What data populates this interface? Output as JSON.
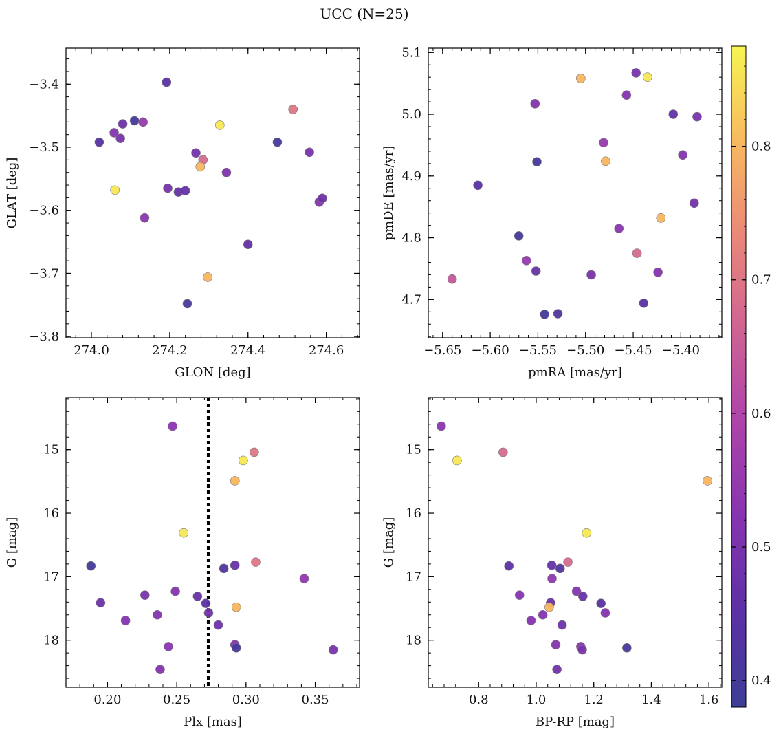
{
  "figure": {
    "title": "UCC (N=25)",
    "colorbar": {
      "range": [
        0.38,
        0.875
      ],
      "ticks": [
        0.4,
        0.5,
        0.6,
        0.7,
        0.8
      ],
      "tick_labels": [
        "0.4",
        "0.5",
        "0.6",
        "0.7",
        "0.8"
      ]
    }
  },
  "chart_data": [
    {
      "type": "scatter",
      "xlabel": "GLON [deg]",
      "ylabel": "GLAT [deg]",
      "xlim": [
        273.935,
        274.685
      ],
      "ylim": [
        -3.802,
        -3.343
      ],
      "xticks": [
        274.0,
        274.2,
        274.4,
        274.6
      ],
      "xtick_labels": [
        "274.0",
        "274.2",
        "274.4",
        "274.6"
      ],
      "yticks": [
        -3.8,
        -3.7,
        -3.6,
        -3.5,
        -3.4
      ],
      "ytick_labels": [
        "−3.8",
        "−3.7",
        "−3.6",
        "−3.5",
        "−3.4"
      ],
      "x": [
        274.02,
        274.058,
        274.074,
        274.08,
        274.11,
        274.132,
        274.136,
        274.192,
        274.195,
        274.222,
        274.24,
        274.245,
        274.267,
        274.285,
        274.345,
        274.4,
        274.475,
        274.557,
        274.582,
        274.59,
        274.06,
        274.297,
        274.328,
        274.278,
        274.515
      ],
      "y": [
        -3.492,
        -3.477,
        -3.486,
        -3.463,
        -3.458,
        -3.46,
        -3.612,
        -3.397,
        -3.565,
        -3.571,
        -3.569,
        -3.748,
        -3.509,
        -3.52,
        -3.54,
        -3.654,
        -3.492,
        -3.508,
        -3.587,
        -3.581,
        -3.568,
        -3.706,
        -3.465,
        -3.531,
        -3.44
      ],
      "color": [
        0.43,
        0.52,
        0.5,
        0.48,
        0.4,
        0.55,
        0.53,
        0.45,
        0.5,
        0.47,
        0.47,
        0.4,
        0.49,
        0.68,
        0.51,
        0.46,
        0.4,
        0.5,
        0.52,
        0.48,
        0.86,
        0.8,
        0.86,
        0.8,
        0.7
      ]
    },
    {
      "type": "scatter",
      "xlabel": "pmRA [mas/yr]",
      "ylabel": "pmDE [mas/yr]",
      "xlim": [
        -5.665,
        -5.357
      ],
      "ylim": [
        4.638,
        5.107
      ],
      "xticks": [
        -5.65,
        -5.6,
        -5.55,
        -5.5,
        -5.45,
        -5.4
      ],
      "xtick_labels": [
        "−5.65",
        "−5.60",
        "−5.55",
        "−5.50",
        "−5.45",
        "−5.40"
      ],
      "yticks": [
        4.7,
        4.8,
        4.9,
        5.0,
        5.1
      ],
      "ytick_labels": [
        "4.7",
        "4.8",
        "4.9",
        "5.0",
        "5.1"
      ],
      "x": [
        -5.553,
        -5.613,
        -5.551,
        -5.57,
        -5.562,
        -5.552,
        -5.543,
        -5.529,
        -5.494,
        -5.481,
        -5.465,
        -5.457,
        -5.447,
        -5.439,
        -5.424,
        -5.408,
        -5.398,
        -5.386,
        -5.383,
        -5.505,
        -5.435,
        -5.479,
        -5.421,
        -5.446,
        -5.64
      ],
      "y": [
        5.017,
        4.885,
        4.923,
        4.803,
        4.763,
        4.746,
        4.676,
        4.677,
        4.74,
        4.954,
        4.815,
        5.031,
        5.067,
        4.694,
        4.744,
        5.0,
        4.934,
        4.856,
        4.996,
        5.058,
        5.06,
        4.924,
        4.832,
        4.775,
        4.733
      ],
      "color": [
        0.52,
        0.45,
        0.4,
        0.4,
        0.55,
        0.47,
        0.4,
        0.43,
        0.5,
        0.55,
        0.53,
        0.52,
        0.5,
        0.45,
        0.52,
        0.46,
        0.52,
        0.49,
        0.5,
        0.8,
        0.86,
        0.8,
        0.8,
        0.68,
        0.64
      ]
    },
    {
      "type": "scatter",
      "xlabel": "Plx [mas]",
      "ylabel": "G [mag]",
      "xlim": [
        0.17,
        0.382
      ],
      "ylim": [
        18.74,
        14.18
      ],
      "y_inverted": true,
      "vline": 0.273,
      "xticks": [
        0.2,
        0.25,
        0.3,
        0.35
      ],
      "xtick_labels": [
        "0.20",
        "0.25",
        "0.30",
        "0.35"
      ],
      "yticks": [
        15,
        16,
        17,
        18
      ],
      "ytick_labels": [
        "15",
        "16",
        "17",
        "18"
      ],
      "x": [
        0.247,
        0.188,
        0.195,
        0.213,
        0.227,
        0.236,
        0.238,
        0.244,
        0.249,
        0.265,
        0.271,
        0.273,
        0.284,
        0.292,
        0.292,
        0.293,
        0.28,
        0.342,
        0.363,
        0.298,
        0.292,
        0.255,
        0.293,
        0.306,
        0.307
      ],
      "y": [
        14.63,
        16.83,
        17.41,
        17.69,
        17.29,
        17.6,
        18.46,
        18.1,
        17.23,
        17.31,
        17.42,
        17.57,
        16.87,
        16.82,
        18.07,
        18.12,
        17.76,
        17.03,
        18.15,
        15.17,
        15.49,
        16.31,
        17.48,
        15.04,
        16.77
      ],
      "color": [
        0.53,
        0.4,
        0.48,
        0.52,
        0.5,
        0.52,
        0.52,
        0.53,
        0.52,
        0.47,
        0.45,
        0.49,
        0.43,
        0.47,
        0.52,
        0.4,
        0.48,
        0.54,
        0.5,
        0.86,
        0.8,
        0.86,
        0.8,
        0.7,
        0.7
      ]
    },
    {
      "type": "scatter",
      "xlabel": "BP-RP [mag]",
      "ylabel": "G [mag]",
      "xlim": [
        0.625,
        1.645
      ],
      "ylim": [
        18.74,
        14.18
      ],
      "y_inverted": true,
      "xticks": [
        0.8,
        1.0,
        1.2,
        1.4,
        1.6
      ],
      "xtick_labels": [
        "0.8",
        "1.0",
        "1.2",
        "1.4",
        "1.6"
      ],
      "yticks": [
        15,
        16,
        17,
        18
      ],
      "ytick_labels": [
        "15",
        "16",
        "17",
        "18"
      ],
      "x": [
        0.67,
        0.905,
        0.942,
        0.982,
        1.023,
        1.05,
        1.054,
        1.055,
        1.068,
        1.072,
        1.083,
        1.09,
        1.14,
        1.155,
        1.16,
        1.162,
        1.225,
        1.24,
        1.315,
        0.725,
        1.595,
        1.175,
        1.045,
        0.885,
        1.11
      ],
      "y": [
        14.63,
        16.83,
        17.29,
        17.69,
        17.6,
        17.41,
        16.82,
        17.03,
        18.07,
        18.46,
        16.87,
        17.76,
        17.23,
        18.1,
        18.15,
        17.31,
        17.42,
        17.57,
        18.12,
        15.17,
        15.49,
        16.31,
        17.48,
        15.04,
        16.77
      ],
      "color": [
        0.53,
        0.45,
        0.52,
        0.52,
        0.52,
        0.48,
        0.47,
        0.54,
        0.52,
        0.49,
        0.43,
        0.48,
        0.52,
        0.53,
        0.5,
        0.47,
        0.45,
        0.52,
        0.4,
        0.86,
        0.8,
        0.86,
        0.8,
        0.68,
        0.68
      ]
    }
  ]
}
